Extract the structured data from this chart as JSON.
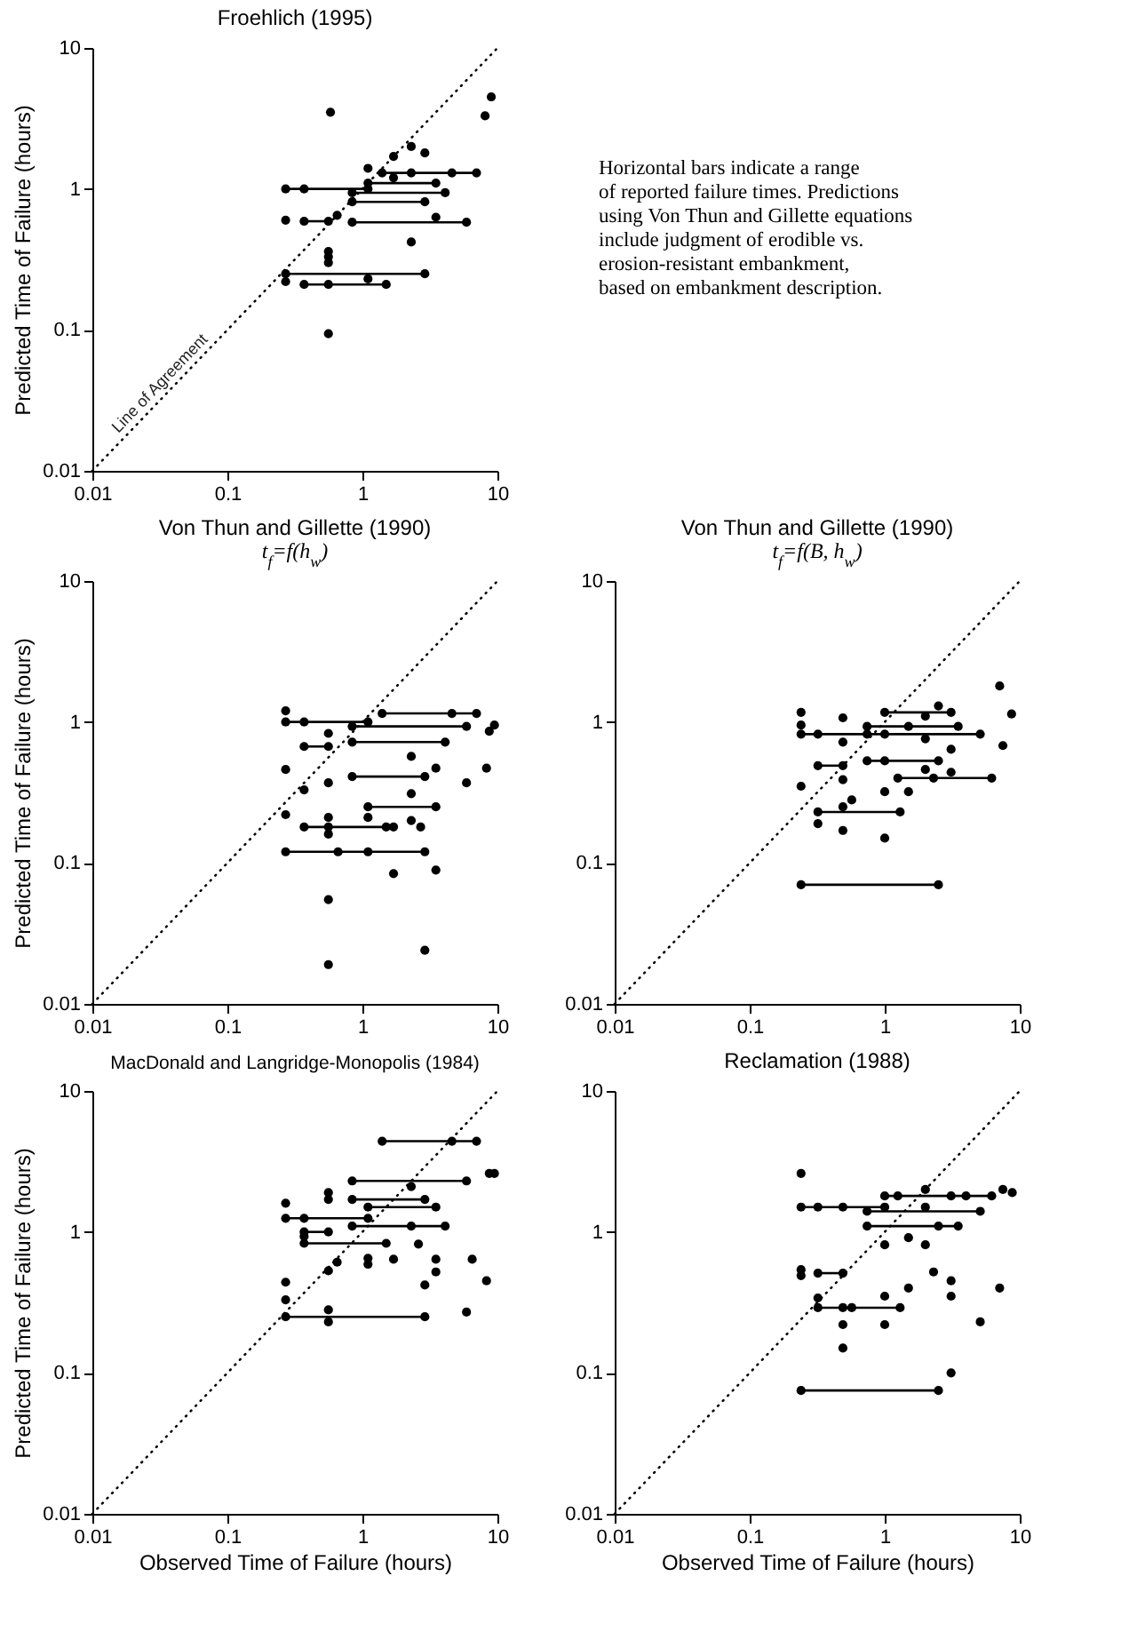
{
  "chart_data": [
    {
      "type": "scatter",
      "title": "Froehlich (1995)",
      "ylabel": "Predicted Time of Failure (hours)",
      "xlim": [
        0.01,
        10
      ],
      "ylim": [
        0.01,
        10
      ],
      "xticks": [
        0.01,
        0.1,
        1,
        10
      ],
      "yticks": [
        0.01,
        0.1,
        1,
        10
      ],
      "log": "xy",
      "annotations": [
        {
          "text": "Line of Agreement",
          "x": 0.017,
          "y": 0.017
        }
      ],
      "series": [
        {
          "type": "line",
          "x": [
            0.01,
            10
          ],
          "values": [
            0.01,
            10
          ],
          "color": "#000000",
          "line_style": "dotted"
        },
        {
          "type": "scatter",
          "color": "#000000",
          "marker": "circle",
          "x": [
            0.58,
            9,
            8.1,
            1.7,
            2.3,
            2.9,
            1.1,
            1.7,
            1.4,
            2.3,
            4.6,
            7.0,
            0.27,
            0.37,
            1.1,
            1.1,
            3.5,
            0.84,
            4.1,
            0.84,
            2.9,
            0.84,
            5.9,
            3.5,
            0.27,
            0.37,
            0.56,
            0.65,
            2.3,
            0.56,
            0.56,
            0.56,
            0.27,
            2.9,
            0.27,
            0.37,
            0.56,
            1.1,
            1.5,
            0.56
          ],
          "values": [
            3.5,
            4.5,
            3.3,
            1.7,
            2.0,
            1.8,
            1.4,
            1.2,
            1.3,
            1.3,
            1.3,
            1.3,
            1.0,
            1.0,
            1.0,
            1.1,
            1.1,
            0.94,
            0.94,
            0.81,
            0.81,
            0.58,
            0.58,
            0.63,
            0.6,
            0.59,
            0.59,
            0.65,
            0.42,
            0.36,
            0.33,
            0.3,
            0.25,
            0.25,
            0.22,
            0.21,
            0.21,
            0.23,
            0.21,
            0.094
          ],
          "xerrors": [
            null,
            null,
            null,
            null,
            null,
            null,
            null,
            null,
            [
              1.4,
              7.0
            ],
            null,
            null,
            null,
            [
              0.27,
              1.1
            ],
            null,
            null,
            [
              1.1,
              3.5
            ],
            null,
            [
              0.84,
              4.1
            ],
            null,
            [
              0.84,
              2.9
            ],
            null,
            [
              0.84,
              5.9
            ],
            null,
            null,
            null,
            [
              0.37,
              0.56
            ],
            null,
            null,
            null,
            null,
            null,
            null,
            [
              0.27,
              2.9
            ],
            null,
            null,
            [
              0.37,
              1.5
            ],
            null,
            null,
            null,
            null
          ]
        }
      ]
    },
    {
      "type": "other",
      "annotations": [
        "Horizontal bars indicate a range\nof reported failure times. Predictions\nusing Von Thun and Gillette equations\ninclude judgment of erodible vs.\nerosion-resistant embankment,\nbased on embankment description."
      ]
    },
    {
      "type": "scatter",
      "title": "Von Thun and Gillette (1990)",
      "subtitle": "t$_{f}$=f(h$_{w}$)",
      "ylabel": "Predicted Time of Failure (hours)",
      "xlim": [
        0.01,
        10
      ],
      "ylim": [
        0.01,
        10
      ],
      "xticks": [
        0.01,
        0.1,
        1,
        10
      ],
      "yticks": [
        0.01,
        0.1,
        1,
        10
      ],
      "log": "xy",
      "series": [
        {
          "type": "line",
          "x": [
            0.01,
            10
          ],
          "values": [
            0.01,
            10
          ],
          "color": "#000000",
          "line_style": "dotted"
        },
        {
          "type": "scatter",
          "color": "#000000",
          "marker": "circle",
          "x": [
            1.4,
            4.6,
            7.0,
            0.27,
            0.27,
            0.37,
            1.1,
            0.84,
            5.9,
            8.7,
            9.5,
            0.56,
            0.84,
            4.1,
            0.37,
            0.56,
            2.3,
            0.27,
            3.5,
            8.3,
            0.84,
            2.9,
            0.37,
            0.56,
            5.9,
            2.3,
            1.1,
            3.5,
            0.27,
            0.56,
            1.1,
            2.3,
            0.37,
            0.56,
            1.5,
            1.7,
            0.56,
            2.7,
            0.27,
            0.66,
            1.1,
            2.9,
            1.7,
            3.5,
            0.56,
            2.9,
            0.56
          ],
          "values": [
            1.15,
            1.15,
            1.15,
            1.2,
            1.0,
            1.0,
            1.0,
            0.93,
            0.93,
            0.86,
            0.95,
            0.83,
            0.72,
            0.72,
            0.67,
            0.67,
            0.57,
            0.46,
            0.47,
            0.47,
            0.41,
            0.41,
            0.33,
            0.37,
            0.37,
            0.31,
            0.25,
            0.25,
            0.22,
            0.21,
            0.21,
            0.2,
            0.18,
            0.18,
            0.18,
            0.18,
            0.16,
            0.18,
            0.12,
            0.12,
            0.12,
            0.12,
            0.084,
            0.089,
            0.055,
            0.024,
            0.019
          ],
          "xerrors": [
            [
              1.4,
              7.0
            ],
            null,
            null,
            null,
            [
              0.27,
              1.1
            ],
            null,
            null,
            [
              0.84,
              5.9
            ],
            null,
            null,
            null,
            null,
            [
              0.84,
              4.1
            ],
            null,
            [
              0.37,
              0.56
            ],
            null,
            null,
            null,
            null,
            null,
            [
              0.84,
              2.9
            ],
            null,
            null,
            null,
            null,
            null,
            [
              1.1,
              3.5
            ],
            null,
            null,
            null,
            null,
            null,
            [
              0.37,
              1.7
            ],
            null,
            null,
            null,
            null,
            null,
            [
              0.27,
              2.9
            ],
            null,
            null,
            null,
            null,
            null,
            null,
            null,
            null
          ]
        }
      ]
    },
    {
      "type": "scatter",
      "title": "Von Thun and Gillette (1990)",
      "subtitle": "t$_{f}$=f(B, h$_{w}$)",
      "xlim": [
        0.01,
        10
      ],
      "ylim": [
        0.01,
        10
      ],
      "xticks": [
        0.01,
        0.1,
        1,
        10
      ],
      "yticks": [
        0.01,
        0.1,
        1,
        10
      ],
      "log": "xy",
      "series": [
        {
          "type": "line",
          "x": [
            0.01,
            10
          ],
          "values": [
            0.01,
            10
          ],
          "color": "#000000",
          "line_style": "dotted"
        },
        {
          "type": "scatter",
          "color": "#000000",
          "marker": "circle",
          "x": [
            7.1,
            8.7,
            0.24,
            0.24,
            0.24,
            0.32,
            0.74,
            1.0,
            5.1,
            2.0,
            0.49,
            1.0,
            3.1,
            2.0,
            2.5,
            0.74,
            1.5,
            3.5,
            0.49,
            7.5,
            3.1,
            0.74,
            1.0,
            2.5,
            0.32,
            0.49,
            2.0,
            3.1,
            1.25,
            2.3,
            6.2,
            0.49,
            0.24,
            1.0,
            1.5,
            0.57,
            0.49,
            0.32,
            1.3,
            0.32,
            0.49,
            1.0,
            0.24,
            2.5
          ],
          "values": [
            1.8,
            1.14,
            1.17,
            0.95,
            0.82,
            0.82,
            0.82,
            0.82,
            0.82,
            0.76,
            1.07,
            1.17,
            1.17,
            1.1,
            1.3,
            0.93,
            0.93,
            0.93,
            0.72,
            0.68,
            0.64,
            0.53,
            0.53,
            0.53,
            0.49,
            0.49,
            0.46,
            0.44,
            0.4,
            0.4,
            0.4,
            0.39,
            0.35,
            0.32,
            0.32,
            0.28,
            0.25,
            0.23,
            0.23,
            0.19,
            0.17,
            0.15,
            0.07,
            0.07
          ],
          "xerrors": [
            null,
            null,
            null,
            null,
            [
              0.24,
              5.1
            ],
            null,
            null,
            null,
            null,
            null,
            null,
            [
              1.0,
              3.1
            ],
            null,
            null,
            null,
            [
              0.74,
              3.5
            ],
            null,
            null,
            null,
            null,
            null,
            [
              0.74,
              2.5
            ],
            null,
            null,
            [
              0.32,
              0.49
            ],
            null,
            null,
            null,
            [
              1.25,
              6.2
            ],
            null,
            null,
            null,
            null,
            null,
            null,
            null,
            null,
            [
              0.32,
              1.3
            ],
            null,
            null,
            null,
            null,
            [
              0.24,
              2.5
            ],
            null
          ]
        }
      ]
    },
    {
      "type": "scatter",
      "title": "MacDonald and Langridge-Monopolis (1984)",
      "xlabel": "Observed Time of Failure (hours)",
      "ylabel": "Predicted Time of Failure (hours)",
      "xlim": [
        0.01,
        10
      ],
      "ylim": [
        0.01,
        10
      ],
      "xticks": [
        0.01,
        0.1,
        1,
        10
      ],
      "yticks": [
        0.01,
        0.1,
        1,
        10
      ],
      "log": "xy",
      "series": [
        {
          "type": "line",
          "x": [
            0.01,
            10
          ],
          "values": [
            0.01,
            10
          ],
          "color": "#000000",
          "line_style": "dotted"
        },
        {
          "type": "scatter",
          "color": "#000000",
          "marker": "circle",
          "x": [
            1.4,
            4.6,
            7.0,
            8.7,
            9.5,
            0.84,
            5.9,
            2.3,
            0.56,
            0.56,
            0.27,
            0.84,
            2.9,
            1.1,
            3.5,
            0.27,
            0.37,
            1.1,
            0.84,
            4.1,
            2.3,
            0.37,
            0.56,
            0.37,
            0.37,
            1.5,
            2.6,
            1.1,
            1.1,
            0.65,
            1.7,
            3.5,
            3.5,
            6.5,
            0.56,
            0.27,
            8.3,
            2.9,
            0.27,
            0.56,
            0.27,
            0.56,
            2.9,
            5.9
          ],
          "values": [
            4.4,
            4.4,
            4.4,
            2.6,
            2.6,
            2.3,
            2.3,
            2.1,
            1.9,
            1.7,
            1.6,
            1.7,
            1.7,
            1.5,
            1.5,
            1.25,
            1.25,
            1.25,
            1.1,
            1.1,
            1.1,
            1.0,
            1.0,
            0.93,
            0.83,
            0.83,
            0.82,
            0.65,
            0.59,
            0.61,
            0.64,
            0.64,
            0.52,
            0.64,
            0.53,
            0.44,
            0.45,
            0.42,
            0.33,
            0.28,
            0.25,
            0.23,
            0.25,
            0.27
          ],
          "xerrors": [
            [
              1.4,
              7.0
            ],
            null,
            null,
            null,
            null,
            [
              0.84,
              5.9
            ],
            null,
            null,
            null,
            null,
            null,
            [
              0.84,
              2.9
            ],
            null,
            [
              1.1,
              3.5
            ],
            null,
            [
              0.27,
              1.1
            ],
            null,
            null,
            [
              0.84,
              4.1
            ],
            null,
            null,
            [
              0.37,
              0.56
            ],
            null,
            null,
            [
              0.37,
              1.5
            ],
            null,
            null,
            null,
            null,
            null,
            null,
            null,
            null,
            null,
            null,
            null,
            null,
            null,
            null,
            null,
            [
              0.27,
              2.9
            ],
            null,
            null,
            null
          ]
        }
      ]
    },
    {
      "type": "scatter",
      "title": "Reclamation (1988)",
      "xlabel": "Observed Time of Failure (hours)",
      "xlim": [
        0.01,
        10
      ],
      "ylim": [
        0.01,
        10
      ],
      "xticks": [
        0.01,
        0.1,
        1,
        10
      ],
      "yticks": [
        0.01,
        0.1,
        1,
        10
      ],
      "log": "xy",
      "series": [
        {
          "type": "line",
          "x": [
            0.01,
            10
          ],
          "values": [
            0.01,
            10
          ],
          "color": "#000000",
          "line_style": "dotted"
        },
        {
          "type": "scatter",
          "color": "#000000",
          "marker": "circle",
          "x": [
            0.24,
            7.5,
            8.8,
            1.0,
            1.25,
            3.1,
            4.0,
            6.2,
            2.0,
            0.24,
            0.32,
            0.49,
            1.0,
            0.74,
            5.1,
            2.0,
            0.74,
            2.5,
            3.5,
            1.5,
            1.0,
            2.0,
            0.24,
            0.24,
            0.32,
            0.49,
            2.3,
            3.1,
            1.5,
            7.1,
            0.32,
            1.0,
            3.1,
            0.32,
            0.49,
            0.57,
            1.3,
            0.49,
            1.0,
            5.1,
            0.49,
            3.1,
            0.24,
            2.5
          ],
          "values": [
            2.6,
            2.0,
            1.9,
            1.8,
            1.8,
            1.8,
            1.8,
            1.8,
            2.0,
            1.5,
            1.5,
            1.5,
            1.5,
            1.4,
            1.4,
            1.5,
            1.1,
            1.1,
            1.1,
            0.91,
            0.81,
            0.81,
            0.54,
            0.49,
            0.51,
            0.51,
            0.52,
            0.45,
            0.4,
            0.4,
            0.34,
            0.35,
            0.35,
            0.29,
            0.29,
            0.29,
            0.29,
            0.22,
            0.22,
            0.23,
            0.15,
            0.1,
            0.075,
            0.075
          ],
          "xerrors": [
            null,
            null,
            null,
            [
              1.0,
              6.2
            ],
            null,
            null,
            null,
            null,
            null,
            [
              0.24,
              1.0
            ],
            null,
            null,
            null,
            [
              0.74,
              5.1
            ],
            null,
            null,
            [
              0.74,
              3.5
            ],
            null,
            null,
            null,
            null,
            null,
            null,
            null,
            [
              0.32,
              0.49
            ],
            null,
            null,
            null,
            null,
            null,
            null,
            null,
            null,
            [
              0.32,
              1.3
            ],
            null,
            null,
            null,
            null,
            null,
            null,
            null,
            null,
            [
              0.24,
              2.5
            ],
            null
          ]
        }
      ]
    }
  ]
}
